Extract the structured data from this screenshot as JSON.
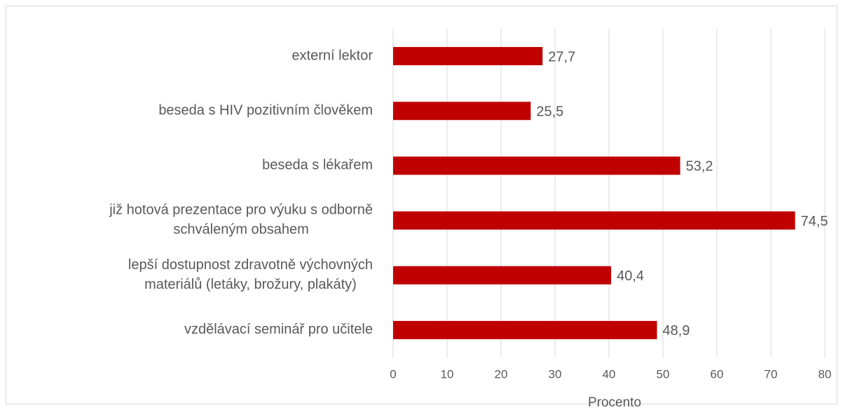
{
  "chart_data": {
    "type": "bar",
    "orientation": "horizontal",
    "categories": [
      "externí lektor",
      "beseda s HIV pozitivním člověkem",
      "beseda s lékařem",
      "již hotová prezentace pro výuku s odborně\nschváleným obsahem",
      "lepší dostupnost zdravotně výchovných\nmateriálů (letáky, brožury, plakáty)",
      "vzdělávací seminář pro učitele"
    ],
    "values": [
      27.7,
      25.5,
      53.2,
      74.5,
      40.4,
      48.9
    ],
    "value_labels": [
      "27,7",
      "25,5",
      "53,2",
      "74,5",
      "40,4",
      "48,9"
    ],
    "color": "#c00000",
    "xlabel": "Procento",
    "xlim": [
      0,
      80
    ],
    "xticks": [
      0,
      10,
      20,
      30,
      40,
      50,
      60,
      70,
      80
    ],
    "grid": true
  }
}
